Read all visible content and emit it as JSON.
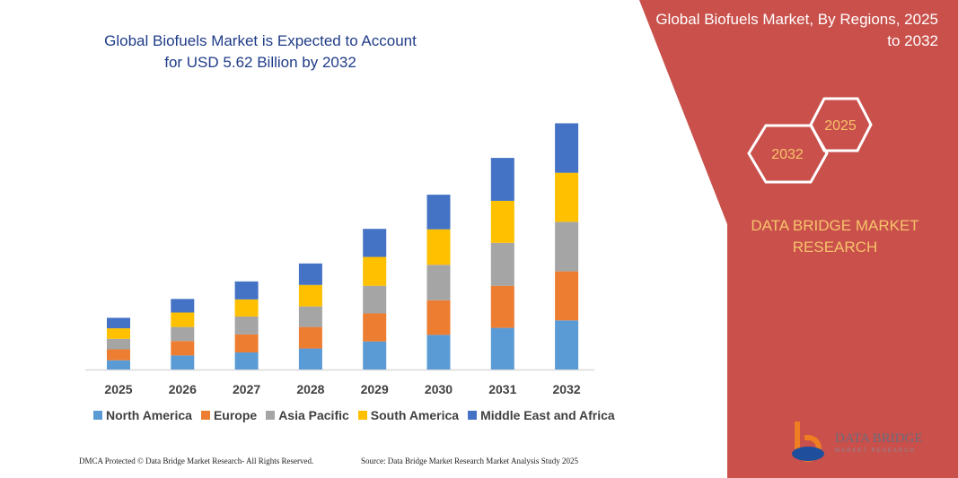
{
  "header": {
    "title": "Global Biofuels Market is Expected to Account for USD 5.62 Billion by 2032"
  },
  "side_panel": {
    "title": "Global Biofuels Market, By Regions, 2025 to 2032",
    "hex_labels": [
      "2025",
      "2032"
    ],
    "brand": "DATA BRIDGE MARKET RESEARCH",
    "logo_text": "DATA BRIDGE",
    "logo_sub": "MARKET RESEARCH"
  },
  "footer": {
    "left": "DMCA Protected © Data Bridge Market Research- All Rights Reserved.",
    "right": "Source: Data Bridge Market Research Market Analysis Study 2025"
  },
  "colors": {
    "panel": "#c9504b",
    "title": "#1f3c88",
    "brand": "#f7c36b"
  },
  "chart_data": {
    "type": "bar",
    "stacked": true,
    "title": "Global Biofuels Market is Expected to Account for USD 5.62 Billion by 2032",
    "categories": [
      "2025",
      "2026",
      "2027",
      "2028",
      "2029",
      "2030",
      "2031",
      "2032"
    ],
    "ylim": [
      0,
      5.7
    ],
    "grid": false,
    "legend_position": "bottom",
    "series": [
      {
        "name": "North America",
        "color": "#5b9bd5",
        "values": [
          0.21,
          0.32,
          0.39,
          0.48,
          0.64,
          0.79,
          0.95,
          1.12
        ]
      },
      {
        "name": "Europe",
        "color": "#ed7d31",
        "values": [
          0.25,
          0.33,
          0.41,
          0.49,
          0.64,
          0.79,
          0.96,
          1.12
        ]
      },
      {
        "name": "Asia Pacific",
        "color": "#a5a5a5",
        "values": [
          0.24,
          0.32,
          0.41,
          0.47,
          0.63,
          0.81,
          0.98,
          1.13
        ]
      },
      {
        "name": "South America",
        "color": "#ffc000",
        "values": [
          0.24,
          0.33,
          0.39,
          0.49,
          0.66,
          0.81,
          0.96,
          1.12
        ]
      },
      {
        "name": "Middle East and Africa",
        "color": "#4472c4",
        "values": [
          0.24,
          0.31,
          0.41,
          0.49,
          0.64,
          0.79,
          0.98,
          1.13
        ]
      }
    ]
  }
}
